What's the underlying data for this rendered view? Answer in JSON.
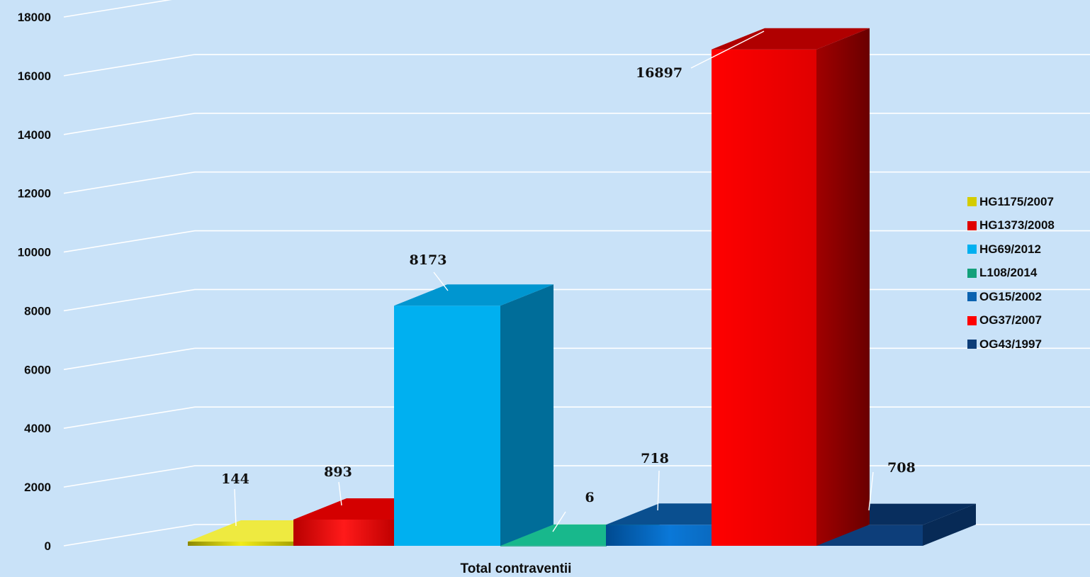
{
  "chart_data": {
    "type": "bar",
    "categories": [
      "Total contraventii"
    ],
    "xlabel": "Total contraventii",
    "ylim": [
      0,
      18000
    ],
    "yticks": [
      "0",
      "2000",
      "4000",
      "6000",
      "8000",
      "10000",
      "12000",
      "14000",
      "16000",
      "18000"
    ],
    "grid": true,
    "legend_position": "right",
    "series": [
      {
        "name": "HG1175/2007",
        "value": 144,
        "label": "144",
        "color": "#d4cc00"
      },
      {
        "name": "HG1373/2008",
        "value": 893,
        "label": "893",
        "color": "#e00000"
      },
      {
        "name": "HG69/2012",
        "value": 8173,
        "label": "8173",
        "color": "#00b0f0"
      },
      {
        "name": "L108/2014",
        "value": 6,
        "label": "6",
        "color": "#13a07a"
      },
      {
        "name": "OG15/2002",
        "value": 718,
        "label": "718",
        "color": "#0a62b0"
      },
      {
        "name": "OG37/2007",
        "value": 16897,
        "label": "16897",
        "color": "#ff0000"
      },
      {
        "name": "OG43/1997",
        "value": 708,
        "label": "708",
        "color": "#0e3e78"
      }
    ]
  }
}
